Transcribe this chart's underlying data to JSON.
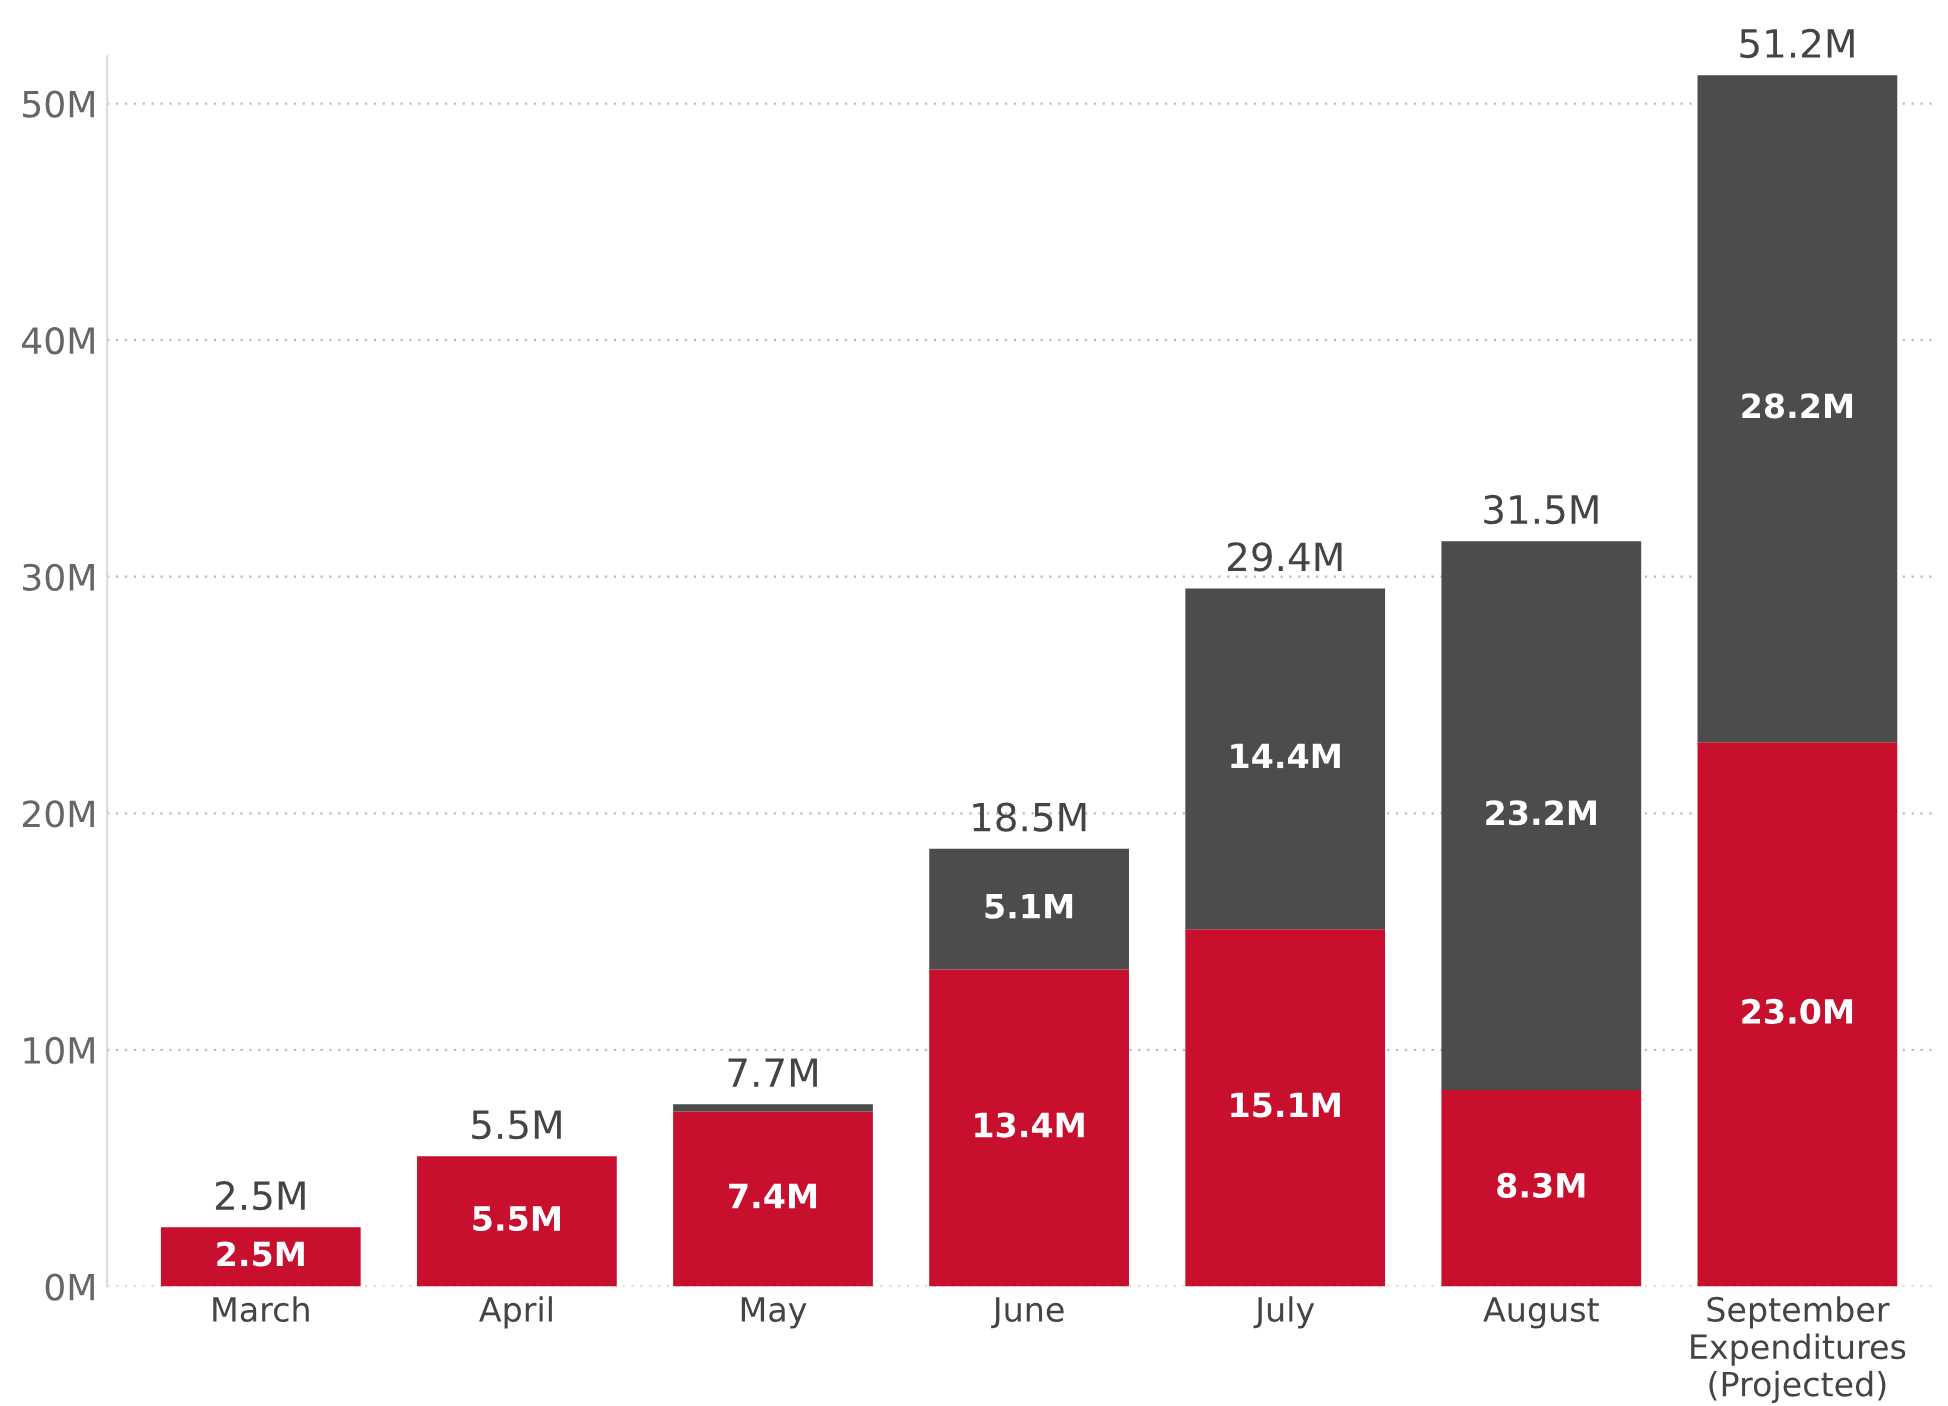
{
  "chart_data": {
    "type": "bar",
    "stacked": true,
    "categories": [
      "March",
      "April",
      "May",
      "June",
      "July",
      "August",
      "September\nExpenditures\n(Projected)"
    ],
    "series": [
      {
        "color": "#c8102e",
        "values": [
          2.5,
          5.5,
          7.4,
          13.4,
          15.1,
          8.3,
          23.0
        ],
        "value_labels": [
          "2.5M",
          "5.5M",
          "7.4M",
          "13.4M",
          "15.1M",
          "8.3M",
          "23.0M"
        ]
      },
      {
        "color": "#4d4b4c",
        "values": [
          null,
          null,
          0.3,
          5.1,
          14.4,
          23.2,
          28.2
        ],
        "value_labels": [
          null,
          null,
          null,
          "5.1M",
          "14.4M",
          "23.2M",
          "28.2M"
        ]
      }
    ],
    "totals": [
      "2.5M",
      "5.5M",
      "7.7M",
      "18.5M",
      "29.4M",
      "31.5M",
      "51.2M"
    ],
    "ylim": [
      0,
      52
    ],
    "yticks": [
      {
        "value": 0,
        "label": "0M"
      },
      {
        "value": 10,
        "label": "10M"
      },
      {
        "value": 20,
        "label": "20M"
      },
      {
        "value": 30,
        "label": "30M"
      },
      {
        "value": 40,
        "label": "40M"
      },
      {
        "value": 50,
        "label": "50M"
      }
    ],
    "grid": "y",
    "legend": false
  }
}
